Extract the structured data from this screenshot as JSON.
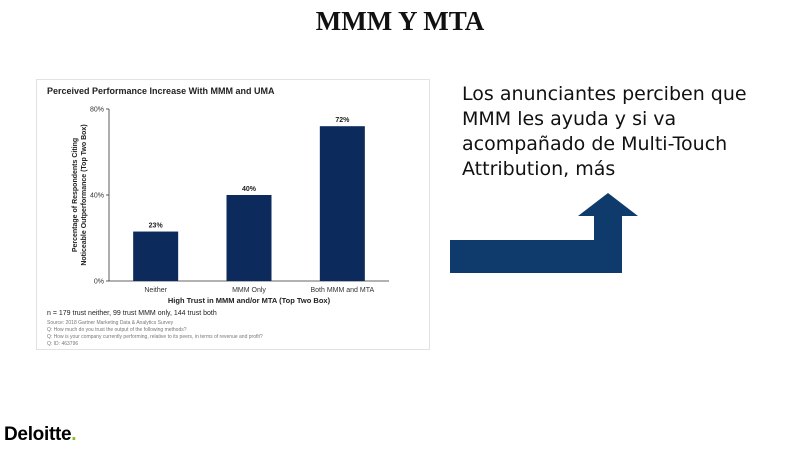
{
  "slide": {
    "title": "MMM Y MTA",
    "body_text": "Los anunciantes perciben que MMM les ayuda y si va acompañado de Multi-Touch Attribution, más"
  },
  "logo": {
    "text": "Deloitte",
    "dot": ".",
    "dot_color": "#86bc25"
  },
  "arrow": {
    "color": "#0e3a6c",
    "direction": "up-right"
  },
  "chart_data": {
    "type": "bar",
    "title": "Perceived Performance Increase With MMM and UMA",
    "categories": [
      "Neither",
      "MMM Only",
      "Both MMM and MTA"
    ],
    "values": [
      23,
      40,
      72
    ],
    "data_labels": [
      "23%",
      "40%",
      "72%"
    ],
    "ylabel_line1": "Percentage of Respondents Citing",
    "ylabel_line2": "Noticeable Outperformance (Top Two Box)",
    "xlabel": "High Trust in MMM and/or MTA (Top Two Box)",
    "yticks": [
      "0%",
      "40%",
      "80%"
    ],
    "ylim": [
      0,
      80
    ],
    "bar_color": "#0c2a5c",
    "grid": false
  },
  "notes": {
    "sample": "n = 179 trust neither, 99 trust MMM only, 144 trust both",
    "source_lines": [
      "Source: 2018 Gartner Marketing Data & Analytics Survey",
      "Q: How much do you trust the output of the following methods?",
      "Q: How is your company currently performing, relative to its peers, in terms of revenue and profit?",
      "Q: ID: 463796"
    ]
  }
}
